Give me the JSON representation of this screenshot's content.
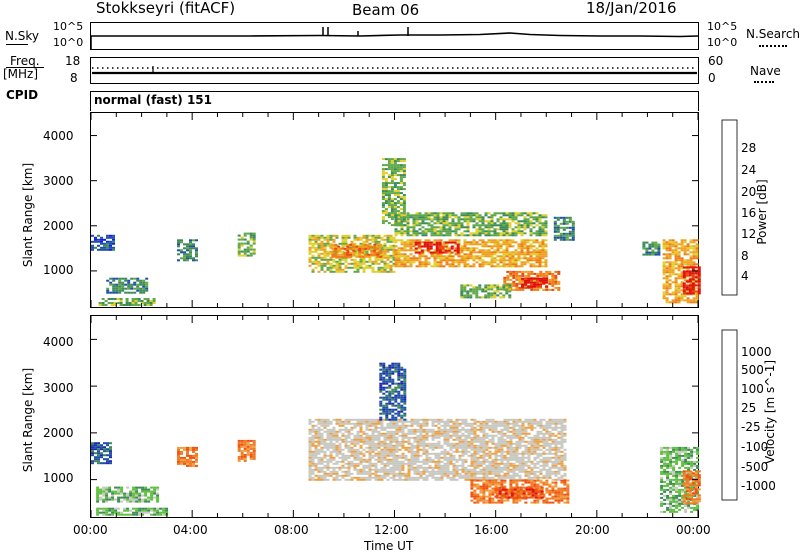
{
  "header": {
    "station": "Stokkseyri (fitACF)",
    "beam": "Beam 06",
    "date": "18/Jan/2016"
  },
  "status_panel": {
    "nsky_label": "N.Sky",
    "nsky_top": "10^5",
    "nsky_bottom": "10^0",
    "nsearch_label": "N.Search",
    "nsearch_top": "10^5",
    "nsearch_bottom": "10^0",
    "freq_label": "Freq.",
    "freq_unit": "[MHz]",
    "freq_top": "18",
    "freq_bottom": "8",
    "nave_label": "Nave",
    "nave_top": "60",
    "nave_bottom": "0",
    "cpid_label": "CPID",
    "cpid_value": "normal (fast) 151"
  },
  "colors": {
    "power_scale": [
      "#0b1cf0",
      "#1f4fa8",
      "#3c8a55",
      "#5fa84a",
      "#e0d02a",
      "#f0a020",
      "#f07a18",
      "#e84810",
      "#e01010"
    ],
    "velocity_scale": [
      "#e01010",
      "#f05010",
      "#f07a20",
      "#f0a040",
      "#c8c8c0",
      "#c8c8c0",
      "#5cc03c",
      "#3c8a55",
      "#1f4fa8",
      "#1c2ab0"
    ]
  },
  "chart_data": [
    {
      "type": "heatmap",
      "name": "power",
      "ylabel": "Slant Range [km]",
      "yticks": [
        "1000",
        "2000",
        "3000",
        "4000"
      ],
      "ylim": [
        200,
        4500
      ],
      "xlim": [
        0,
        24
      ],
      "colorbar_label": "Power [dB]",
      "colorbar_ticks": [
        "4",
        "8",
        "12",
        "16",
        "20",
        "24",
        "28"
      ],
      "patches": [
        {
          "t0": 0.0,
          "t1": 0.9,
          "r0": 1450,
          "r1": 1800,
          "level": 1
        },
        {
          "t0": 0.6,
          "t1": 2.2,
          "r0": 500,
          "r1": 850,
          "level": 2
        },
        {
          "t0": 0.3,
          "t1": 2.5,
          "r0": 250,
          "r1": 400,
          "level": 3
        },
        {
          "t0": 3.4,
          "t1": 4.2,
          "r0": 1250,
          "r1": 1700,
          "level": 2
        },
        {
          "t0": 5.8,
          "t1": 6.5,
          "r0": 1350,
          "r1": 1850,
          "level": 3
        },
        {
          "t0": 8.6,
          "t1": 12.0,
          "r0": 1000,
          "r1": 1800,
          "level": 4
        },
        {
          "t0": 9.5,
          "t1": 11.5,
          "r0": 1300,
          "r1": 1600,
          "level": 6
        },
        {
          "t0": 11.5,
          "t1": 12.4,
          "r0": 2000,
          "r1": 3500,
          "level": 3
        },
        {
          "t0": 12.0,
          "t1": 18.0,
          "r0": 1800,
          "r1": 2300,
          "level": 3
        },
        {
          "t0": 12.0,
          "t1": 18.0,
          "r0": 1100,
          "r1": 1700,
          "level": 5
        },
        {
          "t0": 12.8,
          "t1": 14.5,
          "r0": 1400,
          "r1": 1650,
          "level": 8
        },
        {
          "t0": 16.3,
          "t1": 18.5,
          "r0": 600,
          "r1": 1000,
          "level": 6
        },
        {
          "t0": 17.0,
          "t1": 18.0,
          "r0": 650,
          "r1": 850,
          "level": 8
        },
        {
          "t0": 14.6,
          "t1": 16.6,
          "r0": 400,
          "r1": 700,
          "level": 3
        },
        {
          "t0": 18.3,
          "t1": 19.1,
          "r0": 1700,
          "r1": 2200,
          "level": 2
        },
        {
          "t0": 21.8,
          "t1": 22.5,
          "r0": 1350,
          "r1": 1650,
          "level": 2
        },
        {
          "t0": 22.6,
          "t1": 24.0,
          "r0": 300,
          "r1": 1700,
          "level": 5
        },
        {
          "t0": 23.4,
          "t1": 24.0,
          "r0": 500,
          "r1": 1100,
          "level": 8
        }
      ]
    },
    {
      "type": "heatmap",
      "name": "velocity",
      "xlabel": "Time UT",
      "ylabel": "Slant Range [km]",
      "yticks": [
        "1000",
        "2000",
        "3000",
        "4000"
      ],
      "xticks": [
        "00:00",
        "04:00",
        "08:00",
        "12:00",
        "16:00",
        "20:00",
        "00:00"
      ],
      "ylim": [
        200,
        4500
      ],
      "xlim": [
        0,
        24
      ],
      "colorbar_label": "Velocity [m s^-1]",
      "colorbar_ticks": [
        "1000",
        "500",
        "100",
        "25",
        "-25",
        "-100",
        "-500",
        "-1000"
      ],
      "patches": [
        {
          "t0": 0.0,
          "t1": 0.8,
          "r0": 1350,
          "r1": 1800,
          "level": 8
        },
        {
          "t0": 0.2,
          "t1": 2.6,
          "r0": 550,
          "r1": 850,
          "level": 6
        },
        {
          "t0": 0.2,
          "t1": 3.0,
          "r0": 250,
          "r1": 400,
          "level": 6
        },
        {
          "t0": 3.4,
          "t1": 4.2,
          "r0": 1300,
          "r1": 1700,
          "level": 2
        },
        {
          "t0": 5.8,
          "t1": 6.5,
          "r0": 1400,
          "r1": 1850,
          "level": 2
        },
        {
          "t0": 8.6,
          "t1": 18.8,
          "r0": 1000,
          "r1": 2300,
          "level": 4
        },
        {
          "t0": 11.4,
          "t1": 12.4,
          "r0": 2300,
          "r1": 3500,
          "level": 8
        },
        {
          "t0": 15.0,
          "t1": 18.8,
          "r0": 500,
          "r1": 1000,
          "level": 2
        },
        {
          "t0": 16.0,
          "t1": 17.8,
          "r0": 600,
          "r1": 850,
          "level": 1
        },
        {
          "t0": 22.5,
          "t1": 24.0,
          "r0": 300,
          "r1": 1700,
          "level": 6
        },
        {
          "t0": 23.4,
          "t1": 24.0,
          "r0": 500,
          "r1": 1200,
          "level": 2
        }
      ]
    }
  ]
}
